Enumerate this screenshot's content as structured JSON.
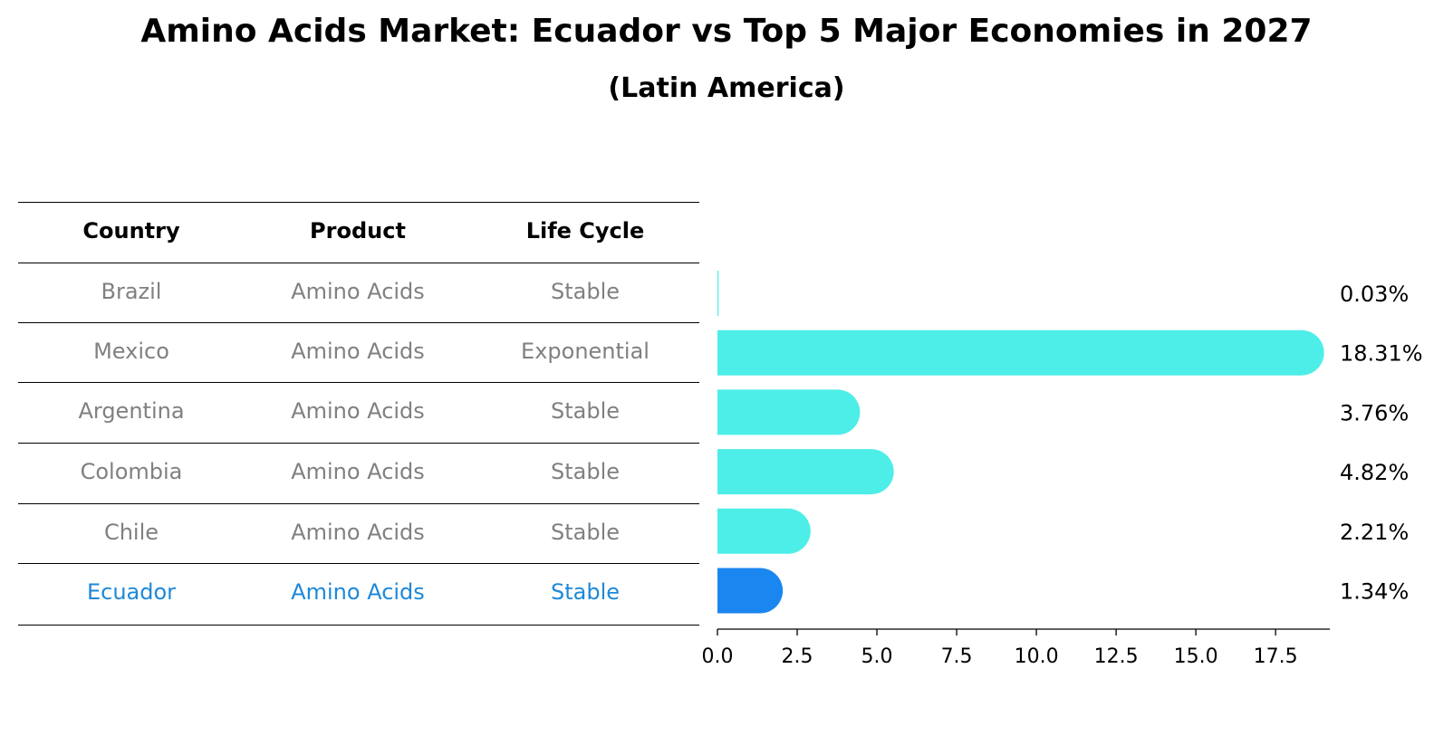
{
  "title": "Amino Acids Market: Ecuador vs Top 5 Major Economies in 2027",
  "subtitle": "(Latin America)",
  "table": {
    "headers": [
      "Country",
      "Product",
      "Life Cycle"
    ],
    "rows": [
      [
        "Brazil",
        "Amino Acids",
        "Stable"
      ],
      [
        "Mexico",
        "Amino Acids",
        "Exponential"
      ],
      [
        "Argentina",
        "Amino Acids",
        "Stable"
      ],
      [
        "Colombia",
        "Amino Acids",
        "Stable"
      ],
      [
        "Chile",
        "Amino Acids",
        "Stable"
      ],
      [
        "Ecuador",
        "Amino Acids",
        "Stable"
      ]
    ],
    "highlight_row": 5,
    "highlight_color": "#1e88d8",
    "text_color": "#808080"
  },
  "chart_data": {
    "type": "bar",
    "orientation": "horizontal",
    "categories": [
      "Brazil",
      "Mexico",
      "Argentina",
      "Colombia",
      "Chile",
      "Ecuador"
    ],
    "values": [
      0.03,
      18.31,
      3.76,
      4.82,
      2.21,
      1.34
    ],
    "value_labels": [
      "0.03%",
      "18.31%",
      "3.76%",
      "4.82%",
      "2.21%",
      "1.34%"
    ],
    "xlim": [
      0,
      19.2
    ],
    "xticks": [
      0.0,
      2.5,
      5.0,
      7.5,
      10.0,
      12.5,
      15.0,
      17.5
    ],
    "xtick_labels": [
      "0.0",
      "2.5",
      "5.0",
      "7.5",
      "10.0",
      "12.5",
      "15.0",
      "17.5"
    ],
    "bar_color": "#4deee8",
    "highlight_color": "#1a86f0",
    "highlight_index": 5,
    "grid": false
  }
}
